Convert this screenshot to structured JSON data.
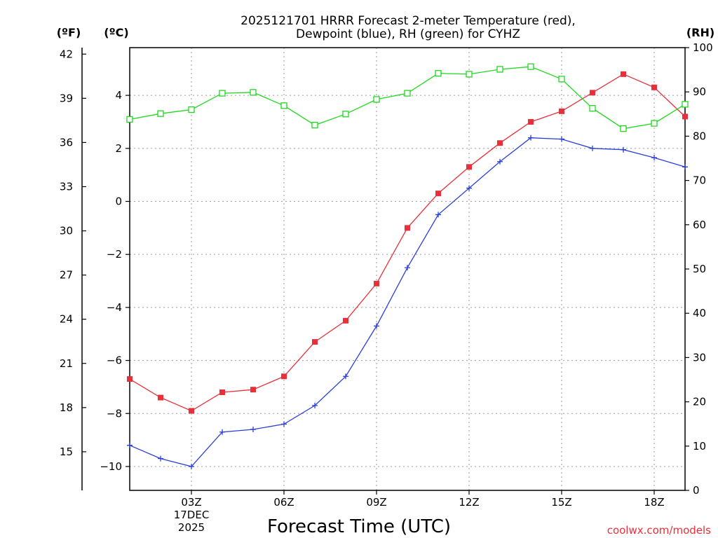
{
  "chart_data": {
    "type": "line",
    "title_lines": [
      "2025121701 HRRR Forecast 2-meter Temperature (red),",
      "Dewpoint (blue), RH (green) for CYHZ"
    ],
    "xlabel": "Forecast Time (UTC)",
    "credit": "coolwx.com/models",
    "unit_labels": {
      "fahrenheit": "(ºF)",
      "celsius": "(ºC)",
      "rh": "(RH)"
    },
    "x_ticks": [
      {
        "hour": 3,
        "lines": [
          "03Z",
          "17DEC",
          "2025"
        ]
      },
      {
        "hour": 6,
        "lines": [
          "06Z"
        ]
      },
      {
        "hour": 9,
        "lines": [
          "09Z"
        ]
      },
      {
        "hour": 12,
        "lines": [
          "12Z"
        ]
      },
      {
        "hour": 15,
        "lines": [
          "15Z"
        ]
      },
      {
        "hour": 18,
        "lines": [
          "18Z"
        ]
      }
    ],
    "x_range": [
      1,
      19
    ],
    "celsius_range": [
      -10.9,
      5.8
    ],
    "celsius_ticks": [
      "4",
      "2",
      "0",
      "−2",
      "−4",
      "−6",
      "−8",
      "−10"
    ],
    "fahrenheit_ticks": [
      "42",
      "39",
      "36",
      "33",
      "30",
      "27",
      "24",
      "21",
      "18",
      "15"
    ],
    "rh_range": [
      0,
      100
    ],
    "rh_ticks": [
      "100",
      "90",
      "80",
      "70",
      "60",
      "50",
      "40",
      "30",
      "20",
      "10",
      "0"
    ],
    "hours": [
      1,
      2,
      3,
      4,
      5,
      6,
      7,
      8,
      9,
      10,
      11,
      12,
      13,
      14,
      15,
      16,
      17,
      18,
      19
    ],
    "series": [
      {
        "name": "2-meter Temperature",
        "unit": "C",
        "color": "#e8303a",
        "marker": "filled-square",
        "values": [
          -6.7,
          -7.4,
          -7.9,
          -7.2,
          -7.1,
          -6.6,
          -5.3,
          -4.5,
          -3.1,
          -1.0,
          0.3,
          1.3,
          2.2,
          3.0,
          3.4,
          4.1,
          4.8,
          4.3,
          3.2
        ]
      },
      {
        "name": "Dewpoint",
        "unit": "C",
        "color": "#2a3fd8",
        "marker": "plus",
        "values": [
          -9.2,
          -9.7,
          -10.0,
          -8.7,
          -8.6,
          -8.4,
          -7.7,
          -6.6,
          -4.7,
          -2.5,
          -0.5,
          0.5,
          1.5,
          2.4,
          2.35,
          2.0,
          1.95,
          1.65,
          1.3
        ]
      },
      {
        "name": "RH",
        "unit": "%",
        "color": "#20d820",
        "marker": "open-square",
        "values": [
          83.8,
          85.1,
          86.0,
          89.7,
          89.9,
          86.9,
          82.5,
          85.0,
          88.3,
          89.7,
          94.2,
          94.0,
          95.1,
          95.7,
          92.9,
          86.3,
          81.7,
          82.9,
          87.2
        ]
      }
    ]
  }
}
